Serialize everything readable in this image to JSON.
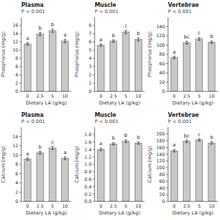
{
  "chart_data": [
    {
      "type": "bar",
      "title": "Plasma",
      "subtitle": "P < 0.001",
      "xlabel": "Dietary LA (g/kg)",
      "ylabel": "Phosphorus (mg/g)",
      "categories": [
        "0",
        "2.5",
        "5",
        "10"
      ],
      "values": [
        11.5,
        13.9,
        14.7,
        12.2
      ],
      "errors": [
        0.3,
        0.4,
        0.4,
        0.4
      ],
      "annotations": [
        "a",
        "b",
        "b",
        "a"
      ],
      "color": "#c8c8c8",
      "ylim": [
        0,
        18
      ],
      "yticks": [
        0,
        2,
        4,
        6,
        8,
        10,
        12,
        14,
        16
      ],
      "grid": false
    },
    {
      "type": "bar",
      "title": "Muscle",
      "subtitle": "P < 0.001",
      "xlabel": "Dietary LA (g/kg)",
      "ylabel": "Phosphorus (mg/g)",
      "categories": [
        "0",
        "2.5",
        "5",
        "10"
      ],
      "values": [
        5.6,
        6.1,
        7.2,
        6.3
      ],
      "errors": [
        0.15,
        0.15,
        0.2,
        0.2
      ],
      "annotations": [
        "a",
        "b",
        "c",
        "b"
      ],
      "color": "#c8c8c8",
      "ylim": [
        0,
        9
      ],
      "yticks": [
        0,
        1,
        2,
        3,
        4,
        5,
        6,
        7,
        8
      ],
      "grid": false
    },
    {
      "type": "bar",
      "title": "Vertebrae",
      "subtitle": "P < 0.001",
      "xlabel": "Dietary LA (g/kg)",
      "ylabel": "Phosphorus (mg/g)",
      "categories": [
        "0",
        "2.5",
        "5",
        "10"
      ],
      "values": [
        73,
        105,
        113,
        106
      ],
      "errors": [
        2.5,
        3.0,
        3.0,
        2.5
      ],
      "annotations": [
        "a",
        "bc",
        "c",
        "b"
      ],
      "color": "#c8c8c8",
      "ylim": [
        0,
        160
      ],
      "yticks": [
        0,
        20,
        40,
        60,
        80,
        100,
        120,
        140
      ],
      "grid": false
    },
    {
      "type": "bar",
      "title": "Plasma",
      "subtitle": "P < 0.001",
      "xlabel": "Dietary LA (g/kg)",
      "ylabel": "Calcium (mg/g)",
      "categories": [
        "0",
        "2.5",
        "5",
        "10"
      ],
      "values": [
        9.1,
        10.5,
        11.5,
        9.3
      ],
      "errors": [
        0.25,
        0.3,
        0.35,
        0.3
      ],
      "annotations": [
        "a",
        "b",
        "c",
        "a"
      ],
      "color": "#c8c8c8",
      "ylim": [
        0,
        16
      ],
      "yticks": [
        0,
        2,
        4,
        6,
        8,
        10,
        12,
        14
      ],
      "grid": false
    },
    {
      "type": "bar",
      "title": "Muscle",
      "subtitle": "P < 0.001",
      "xlabel": "Dietary LA (g/kg)",
      "ylabel": "Calcium (mg/g)",
      "categories": [
        "0",
        "2.5",
        "5",
        "10"
      ],
      "values": [
        1.4,
        1.55,
        1.62,
        1.57
      ],
      "errors": [
        0.035,
        0.03,
        0.035,
        0.03
      ],
      "annotations": [
        "a",
        "b",
        "b",
        "b"
      ],
      "color": "#c8c8c8",
      "ylim": [
        0,
        2.0
      ],
      "yticks": [
        {
          "value": 0,
          "label": "0.0"
        },
        {
          "value": 0.2,
          "label": "0.2"
        },
        {
          "value": 0.4,
          "label": "0.4"
        },
        {
          "value": 0.6,
          "label": "0.6"
        },
        {
          "value": 0.8,
          "label": "0.8"
        },
        {
          "value": 1,
          "label": "1.0"
        },
        {
          "value": 1.2,
          "label": "1.2"
        },
        {
          "value": 1.4,
          "label": "1.4"
        },
        {
          "value": 1.6,
          "label": "1.6"
        },
        {
          "value": 1.8,
          "label": "1.8"
        }
      ],
      "grid": false
    },
    {
      "type": "bar",
      "title": "Vertebrae",
      "subtitle": "P < 0.001",
      "xlabel": "Dietary LA (g/kg)",
      "ylabel": "Calcium (mg/g)",
      "categories": [
        "0",
        "2.5",
        "5",
        "10"
      ],
      "values": [
        150,
        178,
        182,
        173
      ],
      "errors": [
        3.5,
        3.5,
        3.5,
        3.5
      ],
      "annotations": [
        "a",
        "bc",
        "c",
        "b"
      ],
      "color": "#c8c8c8",
      "ylim": [
        0,
        220
      ],
      "yticks": [
        0,
        20,
        40,
        60,
        80,
        100,
        120,
        140,
        160,
        180,
        200
      ],
      "grid": false
    }
  ]
}
